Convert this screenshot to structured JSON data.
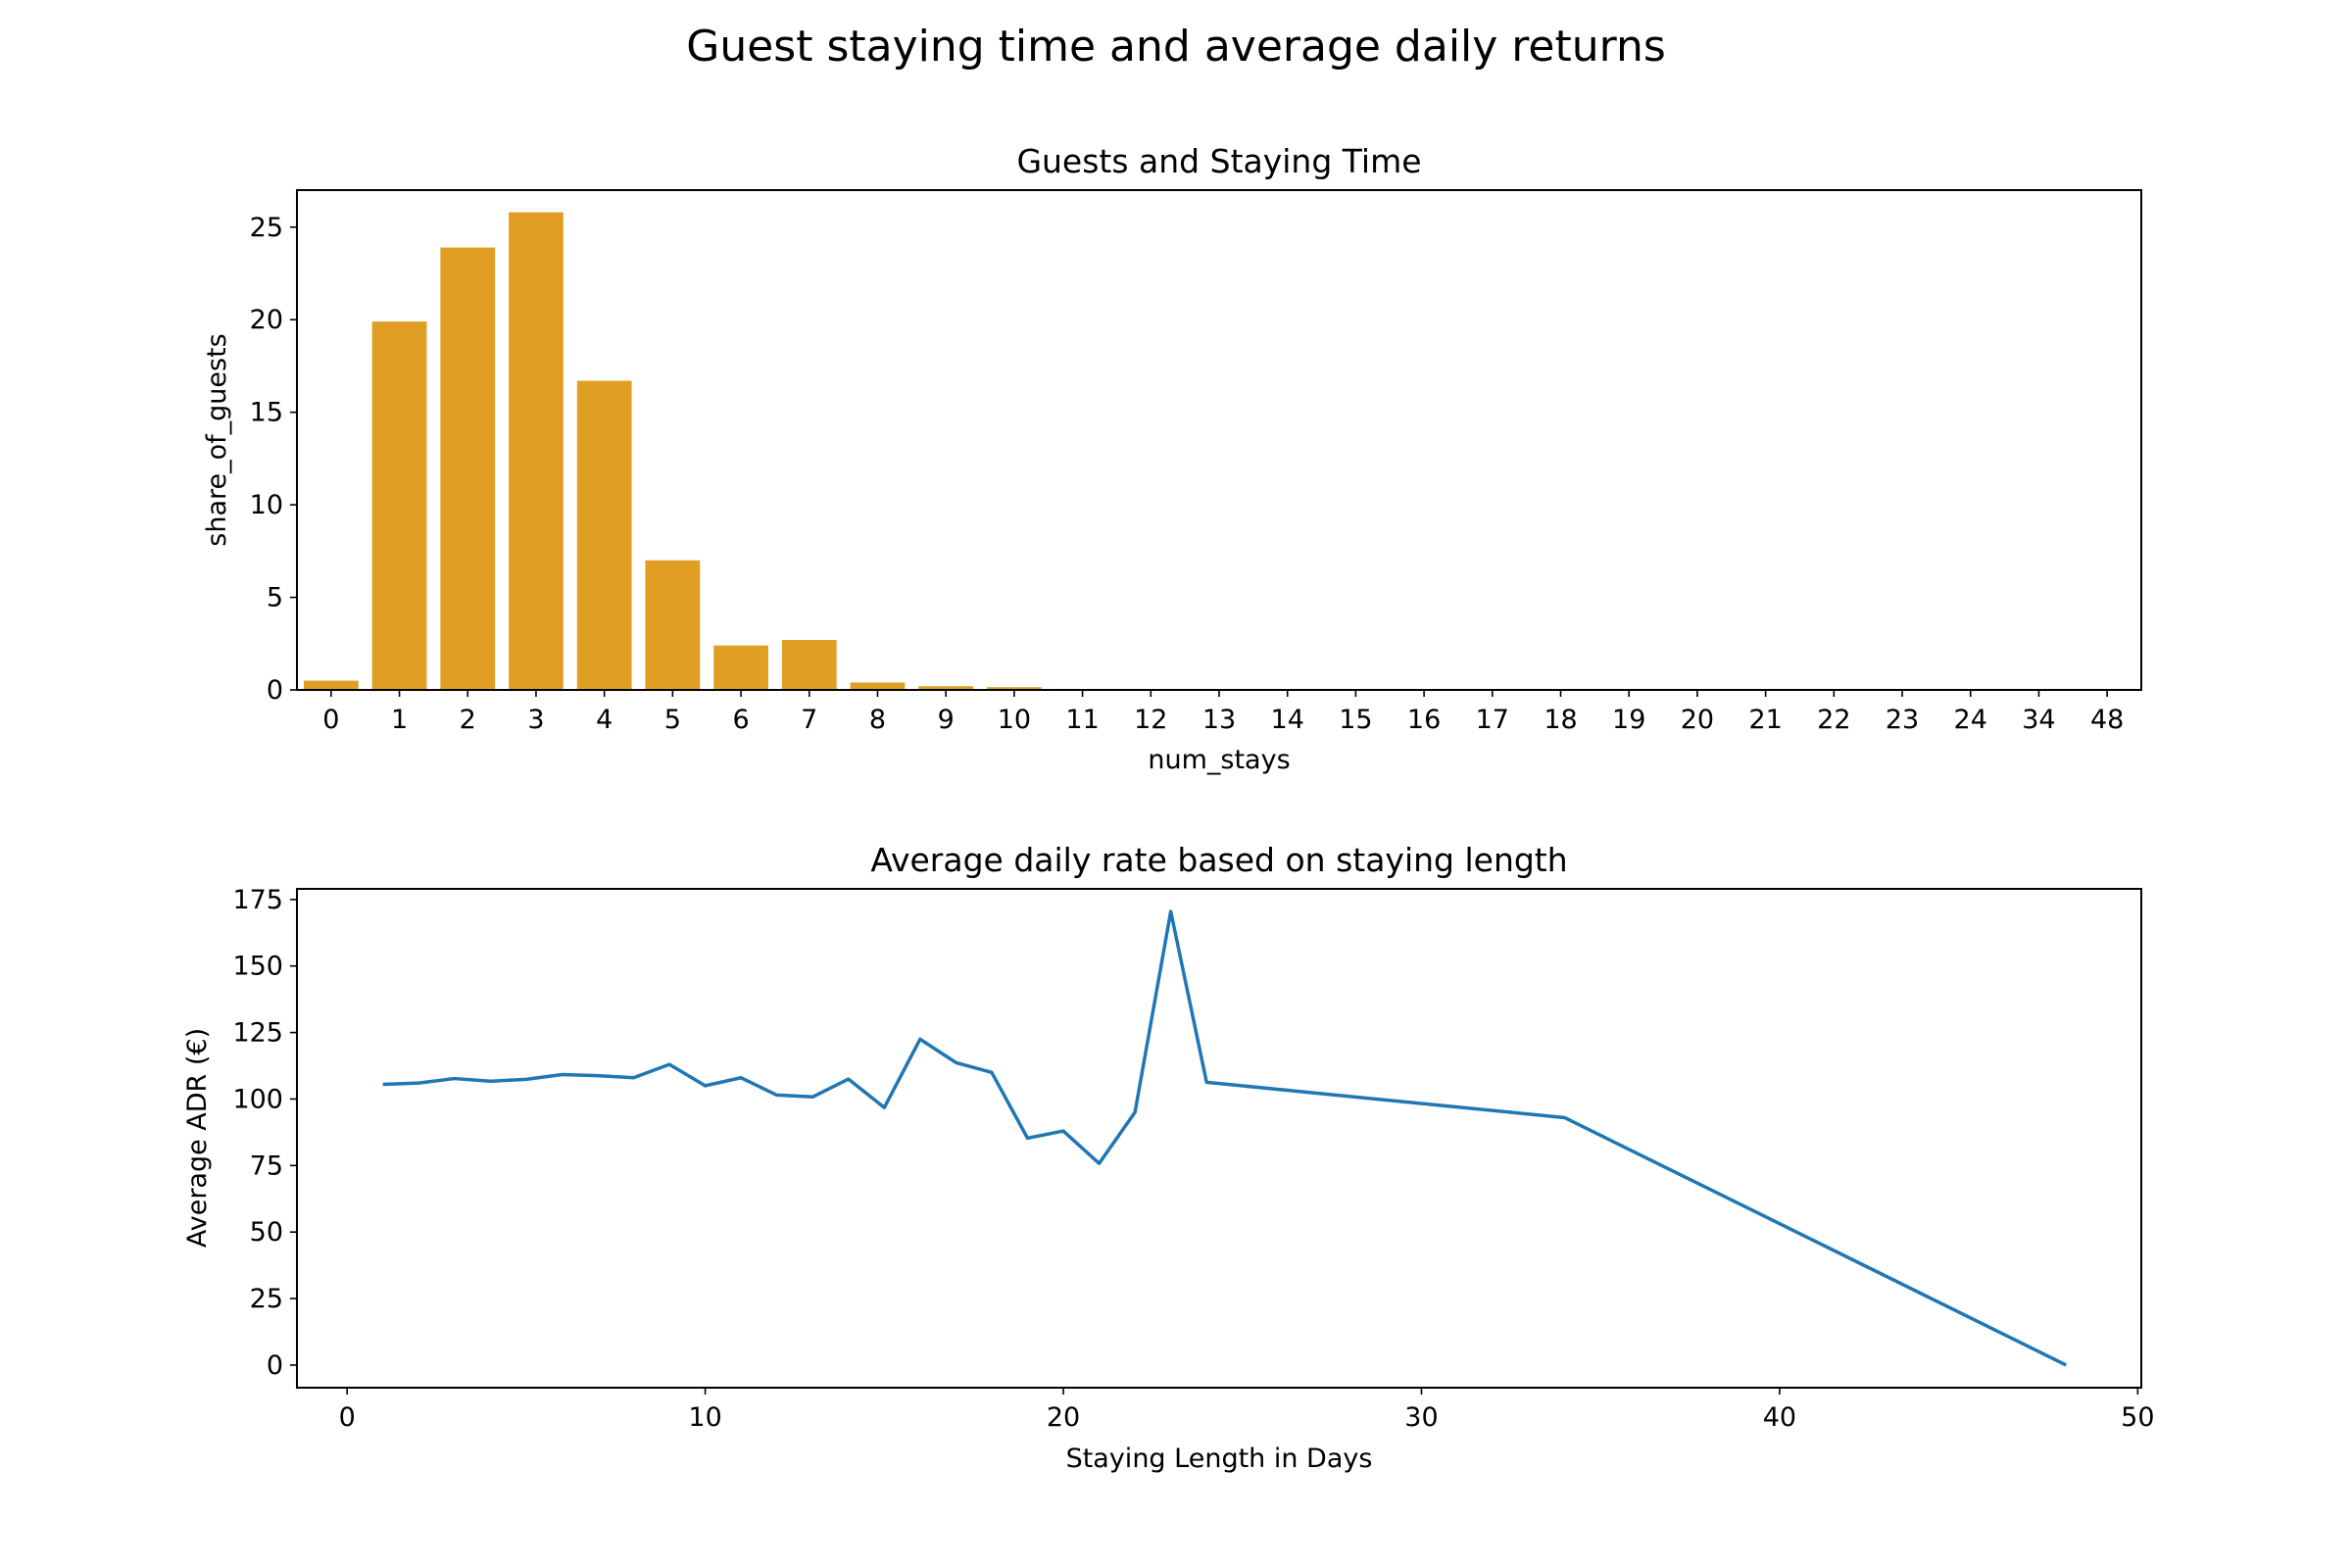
{
  "figure": {
    "title": "Guest staying time and average daily returns"
  },
  "chart_data": [
    {
      "type": "bar",
      "title": "Guests and Staying Time",
      "xlabel": "num_stays",
      "ylabel": "share_of_guests",
      "categories": [
        "0",
        "1",
        "2",
        "3",
        "4",
        "5",
        "6",
        "7",
        "8",
        "9",
        "10",
        "11",
        "12",
        "13",
        "14",
        "15",
        "16",
        "17",
        "18",
        "19",
        "20",
        "21",
        "22",
        "23",
        "24",
        "34",
        "48"
      ],
      "values": [
        0.5,
        19.9,
        23.9,
        25.8,
        16.7,
        7.0,
        2.4,
        2.7,
        0.4,
        0.2,
        0.15,
        0.05,
        0.04,
        0.03,
        0.03,
        0.02,
        0.02,
        0.01,
        0.01,
        0.01,
        0.01,
        0.01,
        0.01,
        0.01,
        0.01,
        0.01,
        0.01
      ],
      "ylim": [
        0,
        27
      ],
      "yticks": [
        0,
        5,
        10,
        15,
        20,
        25
      ],
      "color": "#e09f22",
      "grid": false
    },
    {
      "type": "line",
      "title": "Average daily rate based on staying length",
      "xlabel": "Staying Length in Days",
      "ylabel": "Average ADR (€)",
      "x": [
        1,
        2,
        3,
        4,
        5,
        6,
        7,
        8,
        9,
        10,
        11,
        12,
        13,
        14,
        15,
        16,
        17,
        18,
        19,
        20,
        21,
        22,
        23,
        24,
        34,
        48
      ],
      "y": [
        105.5,
        106,
        107.7,
        106.7,
        107.4,
        109.2,
        108.8,
        108,
        113,
        105,
        108,
        101.5,
        100.8,
        107.5,
        96.8,
        122.5,
        113.7,
        110,
        85.3,
        88,
        75.8,
        95,
        170.5,
        106.3,
        93,
        0
      ],
      "xlim": [
        -1.4,
        50.1
      ],
      "ylim": [
        -8.5,
        179
      ],
      "xticks": [
        0,
        10,
        20,
        30,
        40,
        50
      ],
      "yticks": [
        0,
        25,
        50,
        75,
        100,
        125,
        150,
        175
      ],
      "color": "#1f77b4",
      "grid": false
    }
  ]
}
